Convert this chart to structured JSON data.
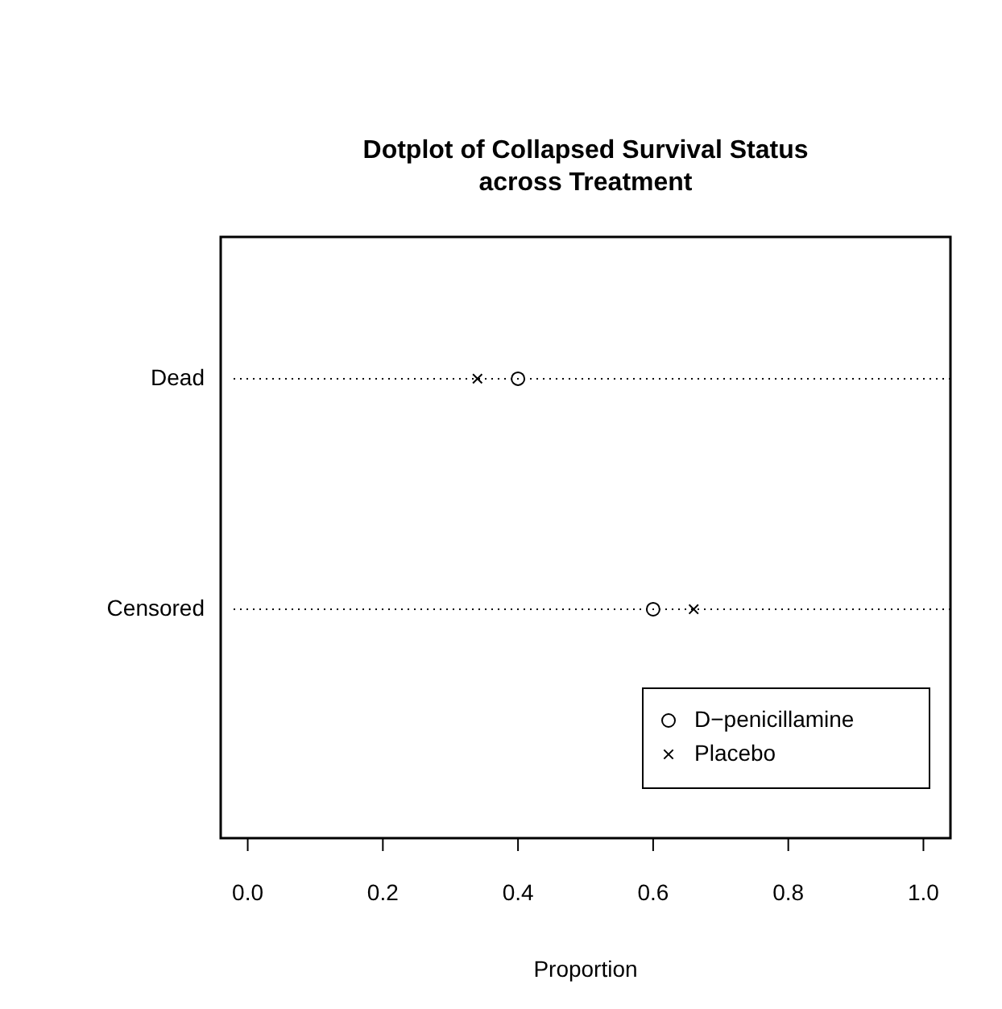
{
  "chart_data": {
    "type": "scatter",
    "title": "Dotplot of Collapsed Survival Status\nacross Treatment",
    "xlabel": "Proportion",
    "orientation": "horizontal",
    "categories": [
      "Dead",
      "Censored"
    ],
    "series": [
      {
        "name": "D−penicillamine",
        "color": "#000000",
        "marker": "circle",
        "values": [
          0.4,
          0.6
        ]
      },
      {
        "name": "Placebo",
        "color": "#000000",
        "marker": "cross",
        "values": [
          0.34,
          0.66
        ]
      }
    ],
    "xlim": [
      -0.04,
      1.04
    ],
    "xticks": [
      {
        "value": 0,
        "label": "0.0"
      },
      0.2,
      0.4,
      0.6,
      0.8,
      {
        "value": 1,
        "label": "1.0"
      }
    ],
    "grid": "y",
    "line_style": "dotted",
    "legend": "bottom right"
  }
}
